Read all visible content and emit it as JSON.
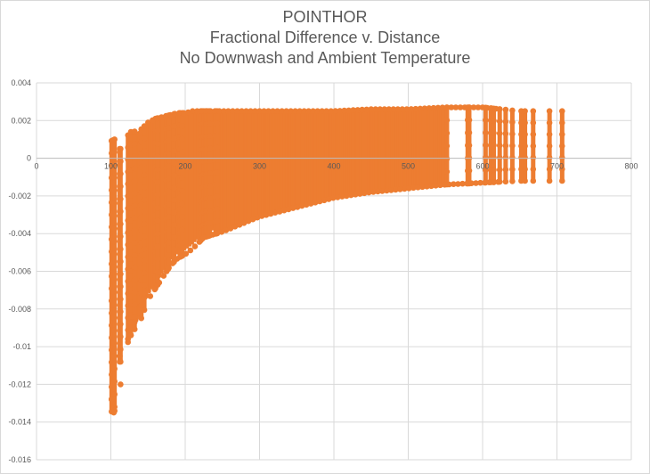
{
  "chart_data": {
    "type": "scatter",
    "title_lines": [
      "POINTHOR",
      "Fractional Difference v. Distance",
      "No Downwash and Ambient Temperature"
    ],
    "xlabel": "",
    "ylabel": "",
    "xlim": [
      0,
      800
    ],
    "ylim": [
      -0.016,
      0.004
    ],
    "x_ticks": [
      0,
      100,
      200,
      300,
      400,
      500,
      600,
      700,
      800
    ],
    "y_ticks": [
      0.004,
      0.002,
      0,
      -0.002,
      -0.004,
      -0.006,
      -0.008,
      -0.01,
      -0.012,
      -0.014,
      -0.016
    ],
    "x_tick_labels": [
      "0",
      "100",
      "200",
      "300",
      "400",
      "500",
      "600",
      "700",
      "800"
    ],
    "y_tick_labels": [
      "0.004",
      "0.002",
      "0",
      "-0.002",
      "-0.004",
      "-0.006",
      "-0.008",
      "-0.01",
      "-0.012",
      "-0.014",
      "-0.016"
    ],
    "grid": true,
    "legend": "none",
    "series_color": "#ED7D31",
    "envelope": [
      {
        "x": 100,
        "ymin": -0.0135,
        "ymax": 0.0009
      },
      {
        "x": 105,
        "ymin": -0.0132,
        "ymax": 0.001
      },
      {
        "x": 110,
        "ymin": -0.0108,
        "ymax": 0.0005
      },
      {
        "x": 115,
        "ymin": -0.0108,
        "ymax": 0.0005
      },
      {
        "x": 125,
        "ymin": -0.0095,
        "ymax": 0.0014
      },
      {
        "x": 130,
        "ymin": -0.0092,
        "ymax": 0.0014
      },
      {
        "x": 140,
        "ymin": -0.0086,
        "ymax": 0.0015
      },
      {
        "x": 150,
        "ymin": -0.0075,
        "ymax": 0.0019
      },
      {
        "x": 160,
        "ymin": -0.0069,
        "ymax": 0.0021
      },
      {
        "x": 170,
        "ymin": -0.0063,
        "ymax": 0.0022
      },
      {
        "x": 180,
        "ymin": -0.0057,
        "ymax": 0.0023
      },
      {
        "x": 190,
        "ymin": -0.0053,
        "ymax": 0.0024
      },
      {
        "x": 200,
        "ymin": -0.0051,
        "ymax": 0.0024
      },
      {
        "x": 210,
        "ymin": -0.0048,
        "ymax": 0.0025
      },
      {
        "x": 225,
        "ymin": -0.0042,
        "ymax": 0.0025
      },
      {
        "x": 250,
        "ymin": -0.0039,
        "ymax": 0.0025
      },
      {
        "x": 275,
        "ymin": -0.0035,
        "ymax": 0.0025
      },
      {
        "x": 300,
        "ymin": -0.0031,
        "ymax": 0.0025
      },
      {
        "x": 350,
        "ymin": -0.0026,
        "ymax": 0.0025
      },
      {
        "x": 400,
        "ymin": -0.0021,
        "ymax": 0.0025
      },
      {
        "x": 450,
        "ymin": -0.0018,
        "ymax": 0.0026
      },
      {
        "x": 500,
        "ymin": -0.0016,
        "ymax": 0.0026
      },
      {
        "x": 550,
        "ymin": -0.0014,
        "ymax": 0.0027
      },
      {
        "x": 600,
        "ymin": -0.0013,
        "ymax": 0.0027
      },
      {
        "x": 650,
        "ymin": -0.0012,
        "ymax": 0.0025
      },
      {
        "x": 700,
        "ymin": -0.0012,
        "ymax": 0.0025
      }
    ],
    "column_x": [
      101,
      103,
      104,
      105,
      112,
      113,
      123,
      127,
      132,
      141,
      145,
      160,
      163,
      175,
      178,
      185,
      193,
      196,
      221,
      223,
      225,
      228,
      229,
      231,
      233,
      241,
      243,
      552,
      580,
      582,
      604,
      611,
      615,
      623,
      631,
      640,
      652,
      657,
      668,
      690,
      707
    ],
    "outliers": [
      {
        "x": 101,
        "y": -0.0128
      },
      {
        "x": 103,
        "y": -0.0133
      },
      {
        "x": 104,
        "y": -0.0135
      },
      {
        "x": 105,
        "y": -0.0134
      },
      {
        "x": 113,
        "y": -0.012
      },
      {
        "x": 112,
        "y": -0.0105
      },
      {
        "x": 123,
        "y": -0.0096
      },
      {
        "x": 127,
        "y": -0.0094
      },
      {
        "x": 132,
        "y": -0.0087
      }
    ]
  }
}
